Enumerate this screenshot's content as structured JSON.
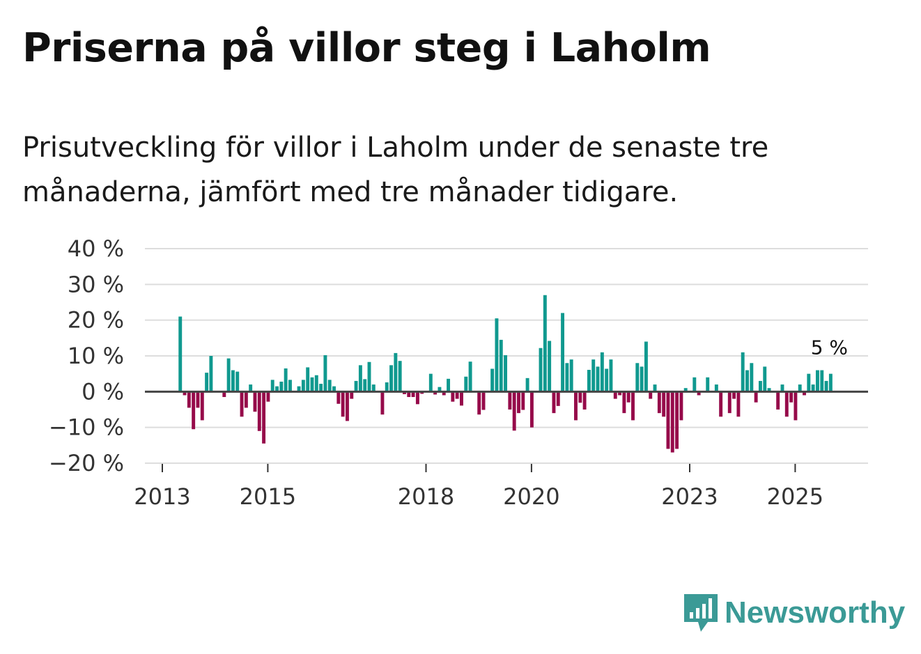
{
  "title": "Priserna på villor steg i Laholm",
  "subtitle": "Prisutveckling för villor i Laholm under de senaste tre månaderna, jämfört med tre månader tidigare.",
  "brand": {
    "name": "Newsworthy",
    "icon": "newsworthy-logo-icon"
  },
  "colors": {
    "positive": "#10998f",
    "negative": "#960a4a",
    "zero_line": "#444444",
    "grid": "#dddddd"
  },
  "chart_data": {
    "type": "bar",
    "title": "Priserna på villor steg i Laholm",
    "xlabel": "",
    "ylabel": "",
    "ylim": [
      -20,
      40
    ],
    "y_ticks": [
      40,
      30,
      20,
      10,
      0,
      -10,
      -20
    ],
    "y_tick_labels": [
      "40 %",
      "30 %",
      "20 %",
      "10 %",
      "0 %",
      "−10 %",
      "−20 %"
    ],
    "x_ticks": [
      2013,
      2015,
      2018,
      2020,
      2023,
      2025
    ],
    "x_tick_labels": [
      "2013",
      "2015",
      "2018",
      "2020",
      "2023",
      "2025"
    ],
    "x_start": 2013.34,
    "months_per_bar": 1,
    "unit": "%",
    "last_label": "5 %",
    "values": [
      21,
      -1,
      -4.5,
      -10.5,
      -4.5,
      -8,
      5.3,
      10,
      0,
      0,
      -1.5,
      9.3,
      6,
      5.6,
      -7,
      -4.5,
      2,
      -5.6,
      -11,
      -14.5,
      -2.8,
      3.3,
      1.5,
      2.8,
      6.5,
      3.3,
      0,
      1.5,
      3.3,
      6.8,
      4,
      4.6,
      2.2,
      10.2,
      3.3,
      1.5,
      -3.4,
      -7,
      -8.2,
      -2,
      3,
      7.4,
      3.5,
      8.3,
      2,
      0,
      -6.4,
      2.6,
      7.4,
      10.8,
      8.6,
      -0.7,
      -1.5,
      -1.5,
      -3.5,
      -0.6,
      0,
      5,
      -0.8,
      1.3,
      -1,
      3.6,
      -2.8,
      -2,
      -3.9,
      4.2,
      8.4,
      0,
      -6.4,
      -5.1,
      0,
      6.4,
      20.5,
      14.5,
      10.2,
      -5,
      -10.9,
      -6,
      -5.1,
      3.8,
      -10,
      0,
      12.2,
      27,
      14.2,
      -6,
      -4,
      22,
      8,
      9,
      -8,
      -3.1,
      -5,
      6.1,
      9,
      7,
      11,
      6.4,
      9,
      -2,
      -1,
      -6,
      -3,
      -8,
      8,
      7,
      14,
      -2,
      2,
      -6,
      -7,
      -16,
      -17,
      -16,
      -8,
      1,
      0,
      4,
      -1,
      0,
      4,
      0,
      2,
      -7,
      0,
      -6,
      -2,
      -7,
      11,
      6,
      8,
      -3,
      3,
      7,
      1,
      0,
      -5,
      2,
      -7,
      -3,
      -8,
      2,
      -1,
      5,
      2,
      6,
      6,
      3,
      5
    ]
  }
}
